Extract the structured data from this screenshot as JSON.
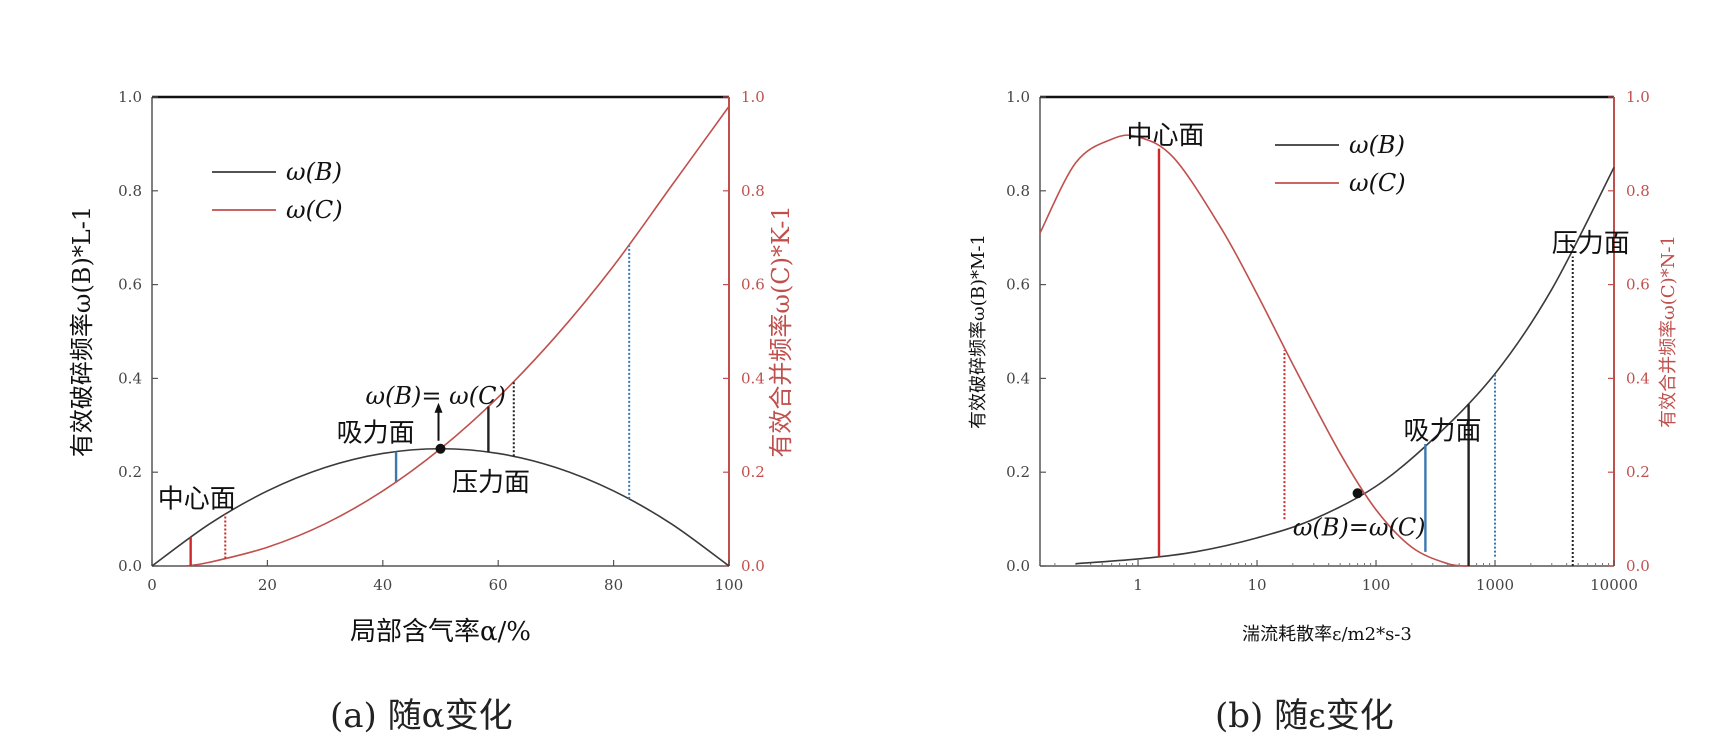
{
  "captions": {
    "a": "(a) 随α变化",
    "b": "(b) 随ε变化"
  },
  "colors": {
    "black_curve": "#3a3a3a",
    "red_curve": "#c0504d",
    "red_line": "#cc2a2a",
    "blue_line": "#3b78b0",
    "axis_red": "#c0504d"
  },
  "chart_data": [
    {
      "type": "line",
      "id": "a",
      "xlabel": "局部含气率α/%",
      "ylabel_left": "有效破碎频率ω(B)*L-1",
      "ylabel_right": "有效合并频率ω(C)*K-1",
      "xlim": [
        0,
        100
      ],
      "ylim": [
        0,
        1.0
      ],
      "xticks": [
        "0",
        "20",
        "40",
        "60",
        "80",
        "100"
      ],
      "xtick_values": [
        0,
        20,
        40,
        60,
        80,
        100
      ],
      "yticks": [
        "0.0",
        "0.2",
        "0.4",
        "0.6",
        "0.8",
        "1.0"
      ],
      "ytick_values": [
        0,
        0.2,
        0.4,
        0.6,
        0.8,
        1.0
      ],
      "grid": false,
      "legend_position": "top-left",
      "series": [
        {
          "name": "ω(B)",
          "color": "#3a3a3a",
          "x": [
            0,
            10,
            20,
            30,
            40,
            50,
            60,
            70,
            80,
            90,
            100
          ],
          "y": [
            0,
            0.09,
            0.16,
            0.21,
            0.24,
            0.25,
            0.24,
            0.21,
            0.16,
            0.09,
            0
          ]
        },
        {
          "name": "ω(C)",
          "color": "#c0504d",
          "x": [
            6,
            10,
            20,
            30,
            40,
            50,
            60,
            70,
            80,
            90,
            100
          ],
          "y": [
            0,
            0.008,
            0.04,
            0.09,
            0.16,
            0.25,
            0.36,
            0.49,
            0.64,
            0.81,
            0.98
          ]
        }
      ],
      "vlines": [
        {
          "x": 6.7,
          "y0": 0,
          "y1": 0.062,
          "color": "#cc2a2a",
          "style": "solid"
        },
        {
          "x": 12.7,
          "y0": 0.016,
          "y1": 0.111,
          "color": "#cc2a2a",
          "style": "dotted"
        },
        {
          "x": 42.3,
          "y0": 0.179,
          "y1": 0.244,
          "color": "#3b78b0",
          "style": "solid"
        },
        {
          "x": 58.3,
          "y0": 0.243,
          "y1": 0.34,
          "color": "#222222",
          "style": "solid"
        },
        {
          "x": 62.7,
          "y0": 0.234,
          "y1": 0.393,
          "color": "#222222",
          "style": "dotted"
        },
        {
          "x": 82.7,
          "y0": 0.143,
          "y1": 0.683,
          "color": "#3b78b0",
          "style": "dotted"
        }
      ],
      "point": {
        "x": 50,
        "y": 0.25
      },
      "annotations": [
        {
          "text": "中心面",
          "x": 1,
          "y": 0.125
        },
        {
          "text": "吸力面",
          "x": 32,
          "y": 0.265
        },
        {
          "text": "压力面",
          "x": 52,
          "y": 0.16
        },
        {
          "text": "ω(B)= ω(C)",
          "x": 37,
          "y": 0.345
        }
      ]
    },
    {
      "type": "line",
      "id": "b",
      "xlabel": "湍流耗散率ε/m2*s-3",
      "ylabel_left": "有效破碎频率ω(B)*M-1",
      "ylabel_right": "有效合并频率ω(C)*N-1",
      "xscale": "log",
      "xlim": [
        0.15,
        10000
      ],
      "ylim": [
        0,
        1.0
      ],
      "xticks": [
        "1",
        "10",
        "100",
        "1000",
        "10000"
      ],
      "xtick_values": [
        1,
        10,
        100,
        1000,
        10000
      ],
      "yticks": [
        "0.0",
        "0.2",
        "0.4",
        "0.6",
        "0.8",
        "1.0"
      ],
      "ytick_values": [
        0,
        0.2,
        0.4,
        0.6,
        0.8,
        1.0
      ],
      "grid": false,
      "legend_position": "top-center",
      "series": [
        {
          "name": "ω(B)",
          "color": "#3a3a3a",
          "x": [
            0.3,
            1,
            3,
            10,
            30,
            100,
            300,
            1000,
            3000,
            10000
          ],
          "y": [
            0.005,
            0.015,
            0.03,
            0.06,
            0.1,
            0.17,
            0.27,
            0.41,
            0.59,
            0.85
          ]
        },
        {
          "name": "ω(C)",
          "color": "#c0504d",
          "x": [
            0.15,
            0.3,
            0.6,
            1,
            2,
            5,
            10,
            20,
            50,
            100,
            200,
            400,
            600
          ],
          "y": [
            0.71,
            0.86,
            0.91,
            0.915,
            0.87,
            0.72,
            0.58,
            0.43,
            0.24,
            0.12,
            0.04,
            0.005,
            0
          ]
        }
      ],
      "vlines": [
        {
          "x": 1.5,
          "y0": 0.02,
          "y1": 0.89,
          "color": "#cc2a2a",
          "style": "solid"
        },
        {
          "x": 17,
          "y0": 0.1,
          "y1": 0.46,
          "color": "#cc2a2a",
          "style": "dotted"
        },
        {
          "x": 260,
          "y0": 0.03,
          "y1": 0.26,
          "color": "#3b78b0",
          "style": "solid"
        },
        {
          "x": 600,
          "y0": 0,
          "y1": 0.345,
          "color": "#222222",
          "style": "solid"
        },
        {
          "x": 1000,
          "y0": 0.02,
          "y1": 0.41,
          "color": "#3b78b0",
          "style": "dotted"
        },
        {
          "x": 4500,
          "y0": 0,
          "y1": 0.66,
          "color": "#222222",
          "style": "dotted"
        }
      ],
      "point": {
        "x": 70,
        "y": 0.155
      },
      "annotations": [
        {
          "text": "中心面",
          "x": 0.8,
          "y": 0.9
        },
        {
          "text": "吸力面",
          "x": 170,
          "y": 0.27
        },
        {
          "text": "压力面",
          "x": 3000,
          "y": 0.67
        },
        {
          "text": "ω(B)=ω(C)",
          "x": 20,
          "y": 0.065
        }
      ]
    }
  ]
}
